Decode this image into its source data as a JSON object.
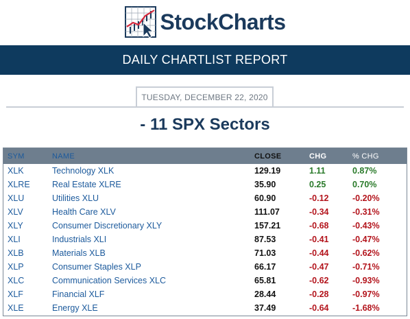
{
  "brand": {
    "name": "StockCharts"
  },
  "report": {
    "title": "DAILY CHARTLIST REPORT"
  },
  "date": "TUESDAY, DECEMBER 22, 2020",
  "list_title": "- 11 SPX Sectors",
  "table": {
    "headers": {
      "sym": "SYM",
      "name": "NAME",
      "close": "CLOSE",
      "chg": "CHG",
      "pct": "% CHG"
    },
    "rows": [
      {
        "sym": "XLK",
        "name": "Technology XLK",
        "close": "129.19",
        "chg": "1.11",
        "pct": "0.87%",
        "dir": "pos"
      },
      {
        "sym": "XLRE",
        "name": "Real Estate XLRE",
        "close": "35.90",
        "chg": "0.25",
        "pct": "0.70%",
        "dir": "pos"
      },
      {
        "sym": "XLU",
        "name": "Utilities XLU",
        "close": "60.90",
        "chg": "-0.12",
        "pct": "-0.20%",
        "dir": "neg"
      },
      {
        "sym": "XLV",
        "name": "Health Care XLV",
        "close": "111.07",
        "chg": "-0.34",
        "pct": "-0.31%",
        "dir": "neg"
      },
      {
        "sym": "XLY",
        "name": "Consumer Discretionary XLY",
        "close": "157.21",
        "chg": "-0.68",
        "pct": "-0.43%",
        "dir": "neg"
      },
      {
        "sym": "XLI",
        "name": "Industrials XLI",
        "close": "87.53",
        "chg": "-0.41",
        "pct": "-0.47%",
        "dir": "neg"
      },
      {
        "sym": "XLB",
        "name": "Materials XLB",
        "close": "71.03",
        "chg": "-0.44",
        "pct": "-0.62%",
        "dir": "neg"
      },
      {
        "sym": "XLP",
        "name": "Consumer Staples XLP",
        "close": "66.17",
        "chg": "-0.47",
        "pct": "-0.71%",
        "dir": "neg"
      },
      {
        "sym": "XLC",
        "name": "Communication Services XLC",
        "close": "65.81",
        "chg": "-0.62",
        "pct": "-0.93%",
        "dir": "neg"
      },
      {
        "sym": "XLF",
        "name": "Financial XLF",
        "close": "28.44",
        "chg": "-0.28",
        "pct": "-0.97%",
        "dir": "neg"
      },
      {
        "sym": "XLE",
        "name": "Energy XLE",
        "close": "37.49",
        "chg": "-0.64",
        "pct": "-1.68%",
        "dir": "neg"
      }
    ]
  },
  "colors": {
    "header_bar": "#0e3a5e",
    "table_header": "#6e7e8e",
    "positive": "#2a7a2a",
    "negative": "#b3141c",
    "link": "#1c5a9c"
  }
}
